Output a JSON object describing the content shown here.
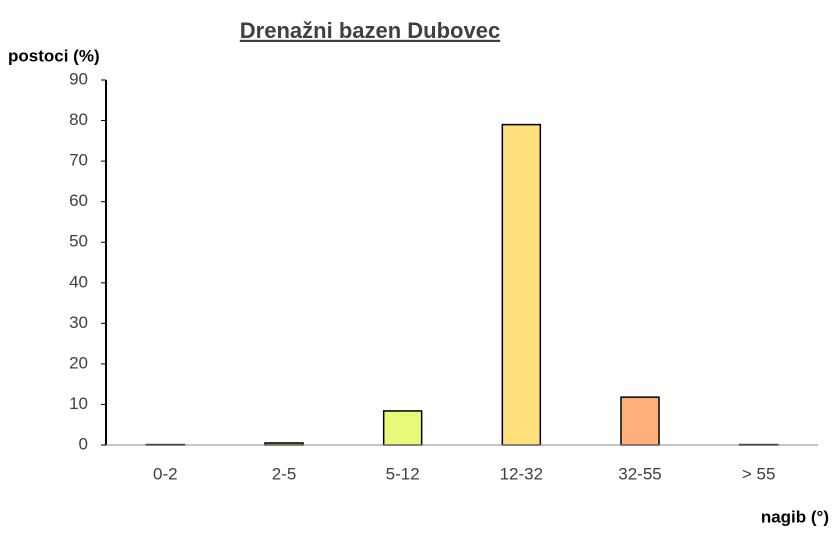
{
  "chart_data": {
    "type": "bar",
    "title": "Drenažni bazen Dubovec",
    "y_label": "postoci (%)",
    "x_label": "nagib (°)",
    "categories": [
      "0-2",
      "2-5",
      "5-12",
      "12-32",
      "32-55",
      "> 55"
    ],
    "values": [
      0.1,
      0.5,
      8.4,
      79,
      11.8,
      0.1
    ],
    "colors": [
      "#4caf50",
      "#a8c84a",
      "#e8f87a",
      "#ffe07a",
      "#ffb07a",
      "#ff7a5a"
    ],
    "ylim": [
      0,
      90
    ],
    "yticks": [
      0,
      10,
      20,
      30,
      40,
      50,
      60,
      70,
      80,
      90
    ],
    "grid": false
  }
}
